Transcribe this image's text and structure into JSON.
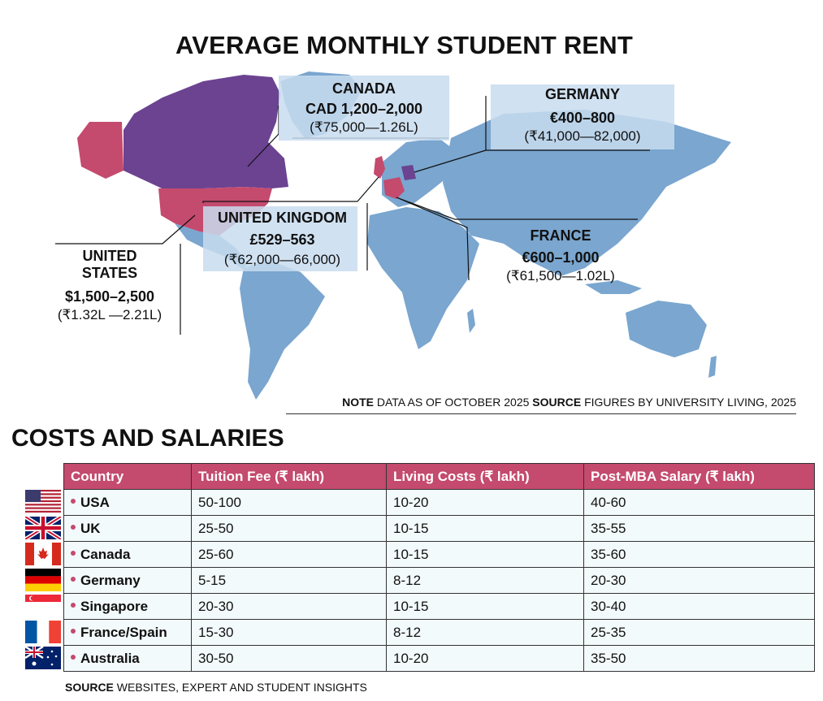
{
  "rent": {
    "title": "AVERAGE MONTHLY STUDENT RENT",
    "canada": {
      "name": "CANADA",
      "value": "CAD 1,200–2,000",
      "inr": "(₹75,000—1.26L)"
    },
    "germany": {
      "name": "GERMANY",
      "value": "€400–800",
      "inr": "(₹41,000—82,000)"
    },
    "uk": {
      "name": "UNITED KINGDOM",
      "value": "£529–563",
      "inr": "(₹62,000—66,000)"
    },
    "usa": {
      "name_line1": "UNITED",
      "name_line2": "STATES",
      "value": "$1,500–2,500",
      "inr": "(₹1.32L —2.21L)"
    },
    "france": {
      "name": "FRANCE",
      "value": "€600–1,000",
      "inr": "(₹61,500—1.02L)"
    },
    "note_label": "NOTE",
    "note_text": "DATA AS OF OCTOBER 2025",
    "source_label": "SOURCE",
    "source_text": "FIGURES BY UNIVERSITY LIVING, 2025",
    "colors": {
      "ocean_land": "#7aa6cf",
      "highlight_purple": "#6b4391",
      "highlight_pink": "#c44a6e"
    }
  },
  "costs": {
    "title": "COSTS AND SALARIES",
    "headers": [
      "Country",
      "Tuition Fee (₹ lakh)",
      "Living Costs (₹ lakh)",
      "Post-MBA Salary (₹ lakh)"
    ],
    "rows": [
      {
        "country": "USA",
        "tuition": "50-100",
        "living": "10-20",
        "salary": "40-60",
        "flag": "us-flag-icon"
      },
      {
        "country": "UK",
        "tuition": "25-50",
        "living": "10-15",
        "salary": "35-55",
        "flag": "uk-flag-icon"
      },
      {
        "country": "Canada",
        "tuition": "25-60",
        "living": "10-15",
        "salary": "35-60",
        "flag": "canada-flag-icon"
      },
      {
        "country": "Germany",
        "tuition": "5-15",
        "living": "8-12",
        "salary": "20-30",
        "flag": "germany-flag-icon"
      },
      {
        "country": "Singapore",
        "tuition": "20-30",
        "living": "10-15",
        "salary": "30-40",
        "flag": "singapore-flag-icon"
      },
      {
        "country": "France/Spain",
        "tuition": "15-30",
        "living": "8-12",
        "salary": "25-35",
        "flag": "france-flag-icon"
      },
      {
        "country": "Australia",
        "tuition": "30-50",
        "living": "10-20",
        "salary": "35-50",
        "flag": "australia-flag-icon"
      }
    ],
    "source_label": "SOURCE",
    "source_text": "WEBSITES, EXPERT AND STUDENT INSIGHTS"
  }
}
